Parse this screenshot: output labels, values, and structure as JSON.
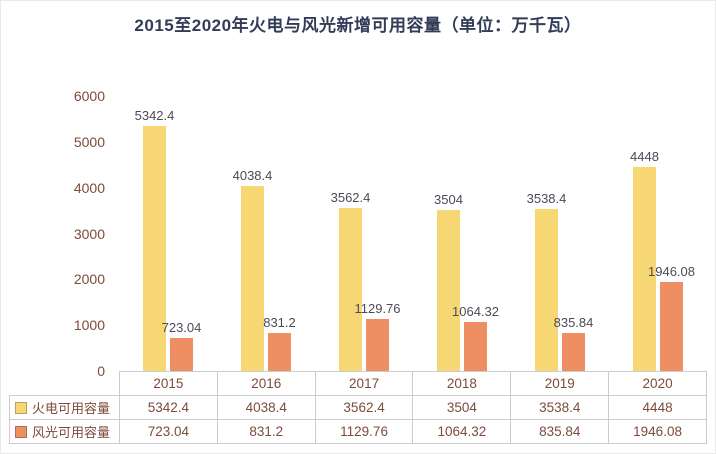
{
  "chart_data": {
    "type": "bar",
    "title": "2015至2020年火电与风光新增可用容量（单位：万千瓦）",
    "categories": [
      "2015",
      "2016",
      "2017",
      "2018",
      "2019",
      "2020"
    ],
    "series": [
      {
        "name": "火电可用容量",
        "color": "#F7D774",
        "values": [
          5342.4,
          4038.4,
          3562.4,
          3504,
          3538.4,
          4448
        ]
      },
      {
        "name": "风光可用容量",
        "color": "#EE8F63",
        "values": [
          723.04,
          831.2,
          1129.76,
          1064.32,
          835.84,
          1946.08
        ]
      }
    ],
    "xlabel": "",
    "ylabel": "",
    "ylim": [
      0,
      6000
    ],
    "yticks": [
      6000,
      5000,
      4000,
      3000,
      2000,
      1000,
      0
    ],
    "grid": false,
    "legend_position": "table-left",
    "data_labels": true
  }
}
